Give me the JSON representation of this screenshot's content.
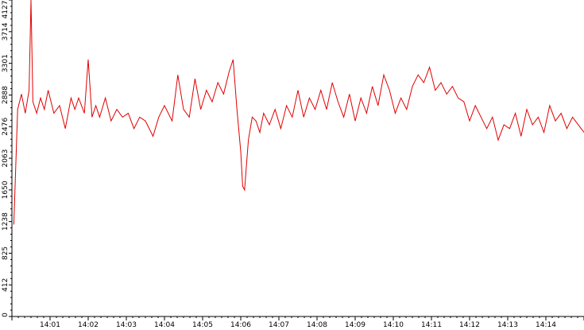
{
  "chart_data": {
    "type": "line",
    "title": "",
    "xlabel": "",
    "ylabel": "",
    "ylim": [
      0,
      4127
    ],
    "y_ticks": [
      "0",
      "412",
      "825",
      "1238",
      "1650",
      "2063",
      "2476",
      "2888",
      "3301",
      "3714",
      "4127"
    ],
    "x_tick_labels": [
      "14:01",
      "14:02",
      "14:03",
      "14:04",
      "14:05",
      "14:06",
      "14:07",
      "14:08",
      "14:09",
      "14:10",
      "14:11",
      "14:12",
      "14:13",
      "14:14"
    ],
    "x_range_minutes": [
      0.05,
      15.0
    ],
    "grid": false,
    "legend": "none",
    "series": [
      {
        "color": "#e00000",
        "x": [
          0.05,
          0.15,
          0.25,
          0.35,
          0.45,
          0.5,
          0.55,
          0.65,
          0.75,
          0.85,
          0.95,
          1.1,
          1.25,
          1.4,
          1.55,
          1.65,
          1.75,
          1.9,
          2.0,
          2.1,
          2.2,
          2.3,
          2.45,
          2.6,
          2.75,
          2.9,
          3.05,
          3.2,
          3.35,
          3.5,
          3.7,
          3.85,
          4.0,
          4.2,
          4.35,
          4.5,
          4.65,
          4.8,
          4.95,
          5.1,
          5.25,
          5.4,
          5.55,
          5.7,
          5.8,
          5.9,
          6.0,
          6.05,
          6.1,
          6.2,
          6.3,
          6.4,
          6.5,
          6.6,
          6.75,
          6.9,
          7.05,
          7.2,
          7.35,
          7.5,
          7.65,
          7.8,
          7.95,
          8.1,
          8.25,
          8.4,
          8.55,
          8.7,
          8.85,
          9.0,
          9.15,
          9.3,
          9.45,
          9.6,
          9.75,
          9.9,
          10.05,
          10.2,
          10.35,
          10.5,
          10.65,
          10.8,
          10.95,
          11.1,
          11.25,
          11.4,
          11.55,
          11.7,
          11.85,
          12.0,
          12.15,
          12.3,
          12.45,
          12.6,
          12.75,
          12.9,
          13.05,
          13.2,
          13.35,
          13.5,
          13.65,
          13.8,
          13.95,
          14.1,
          14.25,
          14.4,
          14.55,
          14.7,
          14.85,
          15.0
        ],
        "y": [
          1200,
          2700,
          2900,
          2650,
          2950,
          4127,
          2800,
          2650,
          2850,
          2700,
          2950,
          2650,
          2750,
          2450,
          2850,
          2700,
          2850,
          2650,
          3350,
          2600,
          2750,
          2600,
          2850,
          2550,
          2700,
          2600,
          2650,
          2450,
          2600,
          2550,
          2350,
          2600,
          2750,
          2550,
          3150,
          2700,
          2600,
          3100,
          2700,
          2950,
          2800,
          3050,
          2900,
          3200,
          3350,
          2700,
          2150,
          1700,
          1650,
          2300,
          2600,
          2550,
          2400,
          2650,
          2500,
          2700,
          2450,
          2750,
          2600,
          2950,
          2600,
          2850,
          2700,
          2950,
          2700,
          3050,
          2800,
          2600,
          2900,
          2550,
          2850,
          2650,
          3000,
          2750,
          3150,
          2950,
          2650,
          2850,
          2700,
          3000,
          3150,
          3050,
          3250,
          2950,
          3050,
          2900,
          3000,
          2850,
          2800,
          2550,
          2750,
          2600,
          2450,
          2600,
          2300,
          2500,
          2450,
          2650,
          2350,
          2700,
          2500,
          2600,
          2400,
          2750,
          2550,
          2650,
          2450,
          2600,
          2500,
          2400
        ]
      }
    ]
  }
}
